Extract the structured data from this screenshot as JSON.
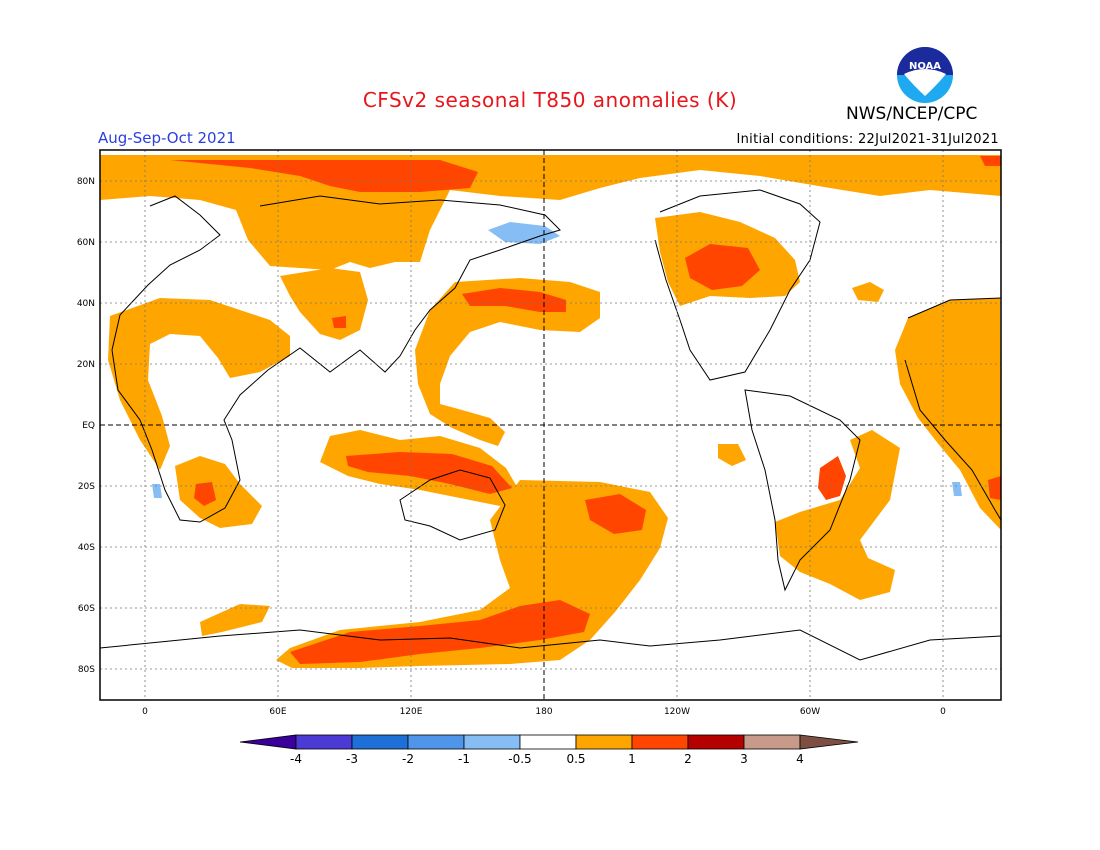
{
  "title": "CFSv2 seasonal T850 anomalies (K)",
  "agency": "NWS/NCEP/CPC",
  "logo_text": "NOAA",
  "season": "Aug-Sep-Oct 2021",
  "initial_conditions": "Initial conditions: 22Jul2021-31Jul2021",
  "lat_labels": [
    "80N",
    "60N",
    "40N",
    "20N",
    "EQ",
    "20S",
    "40S",
    "60S",
    "80S"
  ],
  "lon_labels": [
    "0",
    "60E",
    "120E",
    "180",
    "120W",
    "60W",
    "0"
  ],
  "colors": {
    "c_0_5_1": "#ffa500",
    "c_1_2": "#ff4500",
    "c_m1_m0_5": "#87bdf5",
    "bg": "#ffffff"
  },
  "colorbar": {
    "bins": [
      {
        "range": "<-4",
        "color": "#3a0099"
      },
      {
        "range": "-4 to -3",
        "color": "#4b3ad4"
      },
      {
        "range": "-3 to -2",
        "color": "#1f6fd9"
      },
      {
        "range": "-2 to -1",
        "color": "#4f96ea"
      },
      {
        "range": "-1 to -0.5",
        "color": "#87bdf5"
      },
      {
        "range": "-0.5 to 0.5",
        "color": "#ffffff"
      },
      {
        "range": "0.5 to 1",
        "color": "#ffa500"
      },
      {
        "range": "1 to 2",
        "color": "#ff4500"
      },
      {
        "range": "2 to 3",
        "color": "#b50000"
      },
      {
        "range": "3 to 4",
        "color": "#c79a8a"
      },
      {
        "range": ">4",
        "color": "#7d4f42"
      }
    ],
    "labels": [
      "-4",
      "-3",
      "-2",
      "-1",
      "-0.5",
      "0.5",
      "1",
      "2",
      "3",
      "4"
    ]
  }
}
